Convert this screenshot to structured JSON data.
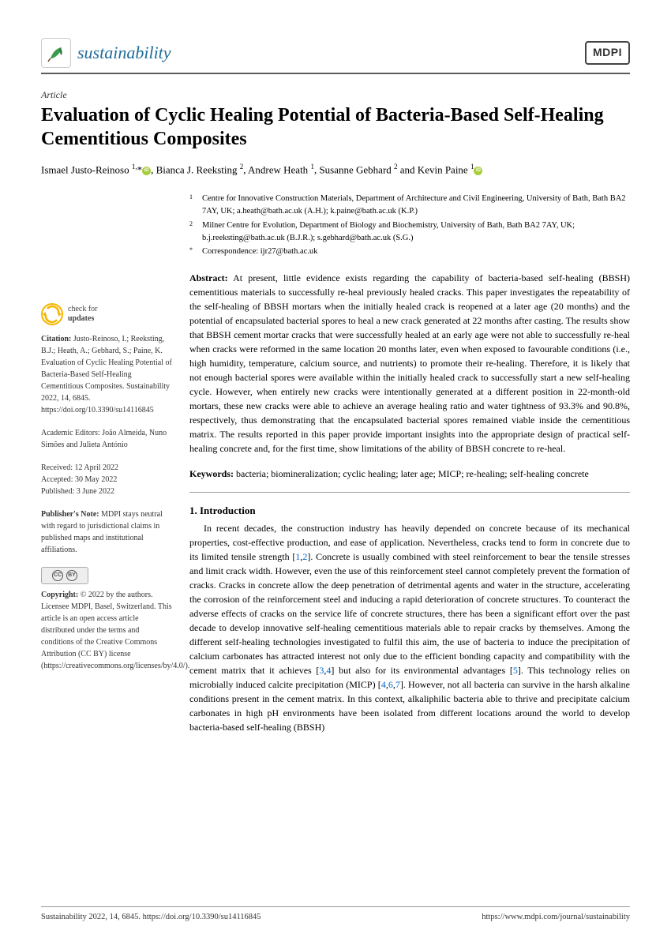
{
  "header": {
    "journal_name": "sustainability",
    "publisher_logo": "MDPI"
  },
  "article_type": "Article",
  "title": "Evaluation of Cyclic Healing Potential of Bacteria-Based Self-Healing Cementitious Composites",
  "authors_html": "Ismael Justo-Reinoso <sup>1,</sup>*<span class='orcid'></span>, Bianca J. Reeksting <sup>2</sup>, Andrew Heath <sup>1</sup>, Susanne Gebhard <sup>2</sup> and Kevin Paine <sup>1</sup><span class='orcid'></span>",
  "affiliations": [
    {
      "mark": "1",
      "text": "Centre for Innovative Construction Materials, Department of Architecture and Civil Engineering, University of Bath, Bath BA2 7AY, UK; a.heath@bath.ac.uk (A.H.); k.paine@bath.ac.uk (K.P.)"
    },
    {
      "mark": "2",
      "text": "Milner Centre for Evolution, Department of Biology and Biochemistry, University of Bath, Bath BA2 7AY, UK; b.j.reeksting@bath.ac.uk (B.J.R.); s.gebhard@bath.ac.uk (S.G.)"
    },
    {
      "mark": "*",
      "text": "Correspondence: ijr27@bath.ac.uk"
    }
  ],
  "abstract_label": "Abstract:",
  "abstract": "At present, little evidence exists regarding the capability of bacteria-based self-healing (BBSH) cementitious materials to successfully re-heal previously healed cracks. This paper investigates the repeatability of the self-healing of BBSH mortars when the initially healed crack is reopened at a later age (20 months) and the potential of encapsulated bacterial spores to heal a new crack generated at 22 months after casting. The results show that BBSH cement mortar cracks that were successfully healed at an early age were not able to successfully re-heal when cracks were reformed in the same location 20 months later, even when exposed to favourable conditions (i.e., high humidity, temperature, calcium source, and nutrients) to promote their re-healing. Therefore, it is likely that not enough bacterial spores were available within the initially healed crack to successfully start a new self-healing cycle. However, when entirely new cracks were intentionally generated at a different position in 22-month-old mortars, these new cracks were able to achieve an average healing ratio and water tightness of 93.3% and 90.8%, respectively, thus demonstrating that the encapsulated bacterial spores remained viable inside the cementitious matrix. The results reported in this paper provide important insights into the appropriate design of practical self-healing concrete and, for the first time, show limitations of the ability of BBSH concrete to re-heal.",
  "keywords_label": "Keywords:",
  "keywords": "bacteria; biomineralization; cyclic healing; later age; MICP; re-healing; self-healing concrete",
  "section1_head": "1. Introduction",
  "section1_body": "In recent decades, the construction industry has heavily depended on concrete because of its mechanical properties, cost-effective production, and ease of application. Nevertheless, cracks tend to form in concrete due to its limited tensile strength [1,2]. Concrete is usually combined with steel reinforcement to bear the tensile stresses and limit crack width. However, even the use of this reinforcement steel cannot completely prevent the formation of cracks. Cracks in concrete allow the deep penetration of detrimental agents and water in the structure, accelerating the corrosion of the reinforcement steel and inducing a rapid deterioration of concrete structures. To counteract the adverse effects of cracks on the service life of concrete structures, there has been a significant effort over the past decade to develop innovative self-healing cementitious materials able to repair cracks by themselves. Among the different self-healing technologies investigated to fulfil this aim, the use of bacteria to induce the precipitation of calcium carbonates has attracted interest not only due to the efficient bonding capacity and compatibility with the cement matrix that it achieves [3,4] but also for its environmental advantages [5]. This technology relies on microbially induced calcite precipitation (MICP) [4,6,7]. However, not all bacteria can survive in the harsh alkaline conditions present in the cement matrix. In this context, alkaliphilic bacteria able to thrive and precipitate calcium carbonates in high pH environments have been isolated from different locations around the world to develop bacteria-based self-healing (BBSH)",
  "sidebar": {
    "check_line1": "check for",
    "check_line2": "updates",
    "citation_label": "Citation:",
    "citation": "Justo-Reinoso, I.; Reeksting, B.J.; Heath, A.; Gebhard, S.; Paine, K. Evaluation of Cyclic Healing Potential of Bacteria-Based Self-Healing Cementitious Composites. Sustainability 2022, 14, 6845. https://doi.org/10.3390/su14116845",
    "editors_label": "Academic Editors:",
    "editors": "João Almeida, Nuno Simões and Julieta António",
    "received": "Received: 12 April 2022",
    "accepted": "Accepted: 30 May 2022",
    "published": "Published: 3 June 2022",
    "pubnote_label": "Publisher's Note:",
    "pubnote": "MDPI stays neutral with regard to jurisdictional claims in published maps and institutional affiliations.",
    "copyright_label": "Copyright:",
    "copyright": "© 2022 by the authors. Licensee MDPI, Basel, Switzerland. This article is an open access article distributed under the terms and conditions of the Creative Commons Attribution (CC BY) license (https://creativecommons.org/licenses/by/4.0/)."
  },
  "footer": {
    "left": "Sustainability 2022, 14, 6845. https://doi.org/10.3390/su14116845",
    "right": "https://www.mdpi.com/journal/sustainability"
  }
}
